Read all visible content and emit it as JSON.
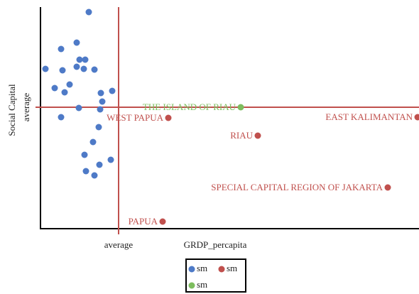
{
  "chart_data": {
    "type": "scatter",
    "x_label": "GRDP_percapita",
    "y_label": "Social Capital",
    "xlim": [
      0,
      533
    ],
    "ylim": [
      0,
      312
    ],
    "xticks": [
      {
        "value": 110,
        "label": "average"
      }
    ],
    "yticks": [
      {
        "value": 171,
        "label": "average"
      }
    ],
    "average_line_color": "#c0504d",
    "series": [
      {
        "name": "sm",
        "color": "#4e7ac7",
        "x": [
          68,
          51,
          29,
          55,
          63,
          7,
          31,
          51,
          61,
          76,
          20,
          41,
          34,
          85,
          101,
          87,
          54,
          84,
          29,
          82,
          74,
          62,
          99,
          83,
          64,
          76
        ],
        "values": [
          305,
          262,
          253,
          238,
          238,
          225,
          223,
          228,
          225,
          224,
          198,
          203,
          192,
          191,
          194,
          179,
          170,
          168,
          157,
          143,
          122,
          104,
          97,
          90,
          81,
          75
        ]
      },
      {
        "name": "sm",
        "color": "#c0504d",
        "x": [
          180,
          531,
          306,
          489,
          172
        ],
        "values": [
          156,
          157,
          131,
          58,
          10
        ],
        "labels": [
          "WEST PAPUA",
          "EAST KALIMANTAN",
          "RIAU",
          "SPECIAL CAPITAL REGION OF JAKARTA",
          "PAPUA"
        ]
      },
      {
        "name": "sm",
        "color": "#7dbd5e",
        "x": [
          282
        ],
        "values": [
          171
        ],
        "labels": [
          "THE ISLAND OF RIAU"
        ]
      }
    ]
  }
}
